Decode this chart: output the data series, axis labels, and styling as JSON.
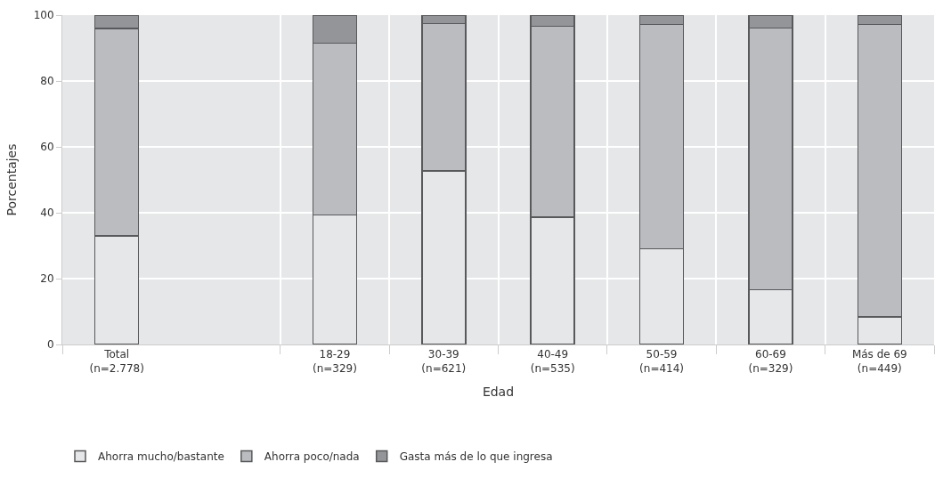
{
  "chart_data": {
    "type": "bar",
    "stacked": true,
    "xlabel": "Edad",
    "ylabel": "Porcentajes",
    "categories": [
      "Total\n(n=2.778)",
      null,
      "18-29\n(n=329)",
      "30-39\n(n=621)",
      "40-49\n(n=535)",
      "50-59\n(n=414)",
      "60-69\n(n=329)",
      "Más de 69\n(n=449)"
    ],
    "series": [
      {
        "name": "Ahorra mucho/bastante",
        "color": "#e6e7e9",
        "values": [
          33,
          null,
          39.3,
          52.7,
          38.6,
          29.1,
          16.6,
          8.4
        ]
      },
      {
        "name": "Ahorra poco/nada",
        "color": "#bbbcc0",
        "values": [
          63,
          null,
          52.2,
          44.8,
          58.0,
          68.0,
          79.5,
          88.7
        ]
      },
      {
        "name": "Gasta más de lo que ingresa",
        "color": "#939598",
        "values": [
          4,
          null,
          8.5,
          2.5,
          3.4,
          2.9,
          3.9,
          2.9
        ]
      }
    ],
    "ylim": [
      0,
      100
    ],
    "yticks": [
      0,
      20,
      40,
      60,
      80,
      100
    ],
    "grid": true,
    "legend": "bottom left"
  }
}
